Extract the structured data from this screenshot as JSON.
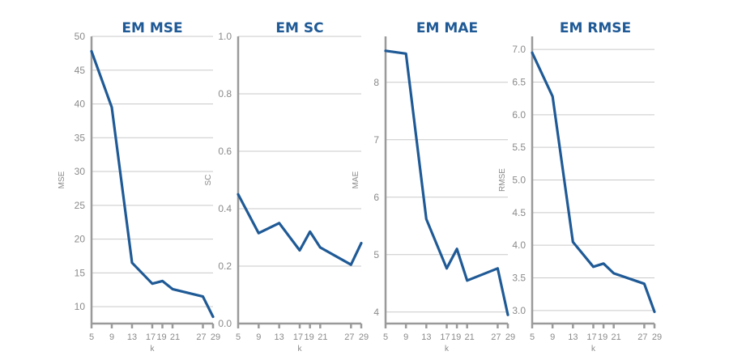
{
  "colors": {
    "series": "#1f5a96",
    "axis": "#9a9a9a",
    "grid": "#c9c9c9",
    "title": "#1f5a96"
  },
  "chart_data": [
    {
      "type": "line",
      "title": "EM MSE",
      "xlabel": "k",
      "ylabel": "MSE",
      "x": [
        5,
        9,
        13,
        17,
        19,
        21,
        27,
        29
      ],
      "xticks": [
        5,
        9,
        13,
        17,
        19,
        21,
        27,
        29
      ],
      "ylim": [
        7.5,
        50
      ],
      "yticks": [
        10,
        15,
        20,
        25,
        30,
        35,
        40,
        45,
        50
      ],
      "yticklabels": [
        "10",
        "15",
        "20",
        "25",
        "30",
        "35",
        "40",
        "45",
        "50"
      ],
      "grid": true,
      "series": [
        {
          "values": [
            47.8,
            39.5,
            16.5,
            13.4,
            13.8,
            12.6,
            11.5,
            8.5
          ]
        }
      ]
    },
    {
      "type": "line",
      "title": "EM SC",
      "xlabel": "k",
      "ylabel": "SC",
      "x": [
        5,
        9,
        13,
        17,
        19,
        21,
        27,
        29
      ],
      "xticks": [
        5,
        9,
        13,
        17,
        19,
        21,
        27,
        29
      ],
      "ylim": [
        0,
        1
      ],
      "yticks": [
        0,
        0.2,
        0.4,
        0.6,
        0.8,
        1
      ],
      "yticklabels": [
        "0.0",
        "0.2",
        "0.4",
        "0.6",
        "0.8",
        "1.0"
      ],
      "grid": true,
      "series": [
        {
          "values": [
            0.45,
            0.315,
            0.35,
            0.255,
            0.32,
            0.265,
            0.205,
            0.28
          ]
        }
      ]
    },
    {
      "type": "line",
      "title": "EM MAE",
      "xlabel": "k",
      "ylabel": "MAE",
      "x": [
        5,
        9,
        13,
        17,
        19,
        21,
        27,
        29
      ],
      "xticks": [
        5,
        9,
        13,
        17,
        19,
        21,
        27,
        29
      ],
      "ylim": [
        3.8,
        8.8
      ],
      "yticks": [
        4,
        5,
        6,
        7,
        8
      ],
      "yticklabels": [
        "4",
        "5",
        "6",
        "7",
        "8"
      ],
      "grid": true,
      "series": [
        {
          "values": [
            8.55,
            8.5,
            5.62,
            4.76,
            5.1,
            4.55,
            4.76,
            3.95
          ]
        }
      ]
    },
    {
      "type": "line",
      "title": "EM RMSE",
      "xlabel": "k",
      "ylabel": "RMSE",
      "x": [
        5,
        9,
        13,
        17,
        19,
        21,
        27,
        29
      ],
      "xticks": [
        5,
        9,
        13,
        17,
        19,
        21,
        27,
        29
      ],
      "ylim": [
        2.8,
        7.2
      ],
      "yticks": [
        3.0,
        3.5,
        4.0,
        4.5,
        5.0,
        5.5,
        6.0,
        6.5,
        7.0
      ],
      "yticklabels": [
        "3.0",
        "3.5",
        "4.0",
        "4.5",
        "5.0",
        "5.5",
        "6.0",
        "6.5",
        "7.0"
      ],
      "grid": true,
      "series": [
        {
          "values": [
            6.95,
            6.28,
            4.05,
            3.67,
            3.72,
            3.57,
            3.41,
            2.98
          ]
        }
      ]
    }
  ]
}
